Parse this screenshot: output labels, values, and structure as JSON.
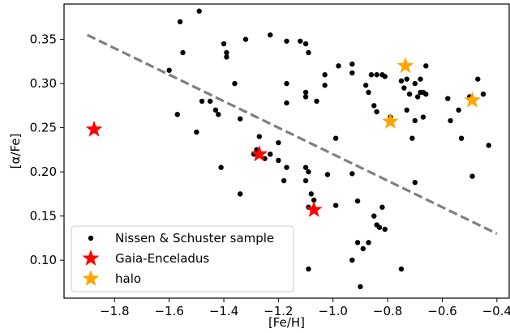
{
  "chart_data": {
    "type": "scatter",
    "xlabel": "[Fe/H]",
    "ylabel": "[α/Fe]",
    "xlim": [
      -1.985,
      -0.355
    ],
    "ylim": [
      0.057,
      0.39
    ],
    "xticks": [
      -1.8,
      -1.6,
      -1.4,
      -1.2,
      -1.0,
      -0.8,
      -0.6,
      -0.4
    ],
    "xtick_labels": [
      "−1.8",
      "−1.6",
      "−1.4",
      "−1.2",
      "−1.0",
      "−0.8",
      "−0.6",
      "−0.4"
    ],
    "yticks": [
      0.1,
      0.15,
      0.2,
      0.25,
      0.3,
      0.35
    ],
    "ytick_labels": [
      "0.10",
      "0.15",
      "0.20",
      "0.25",
      "0.30",
      "0.35"
    ],
    "grid": false,
    "legend_position": "lower-left",
    "dividing_line": {
      "x": [
        -1.9,
        -0.4
      ],
      "y": [
        0.355,
        0.13
      ],
      "color": "#808080",
      "style": "dashed"
    },
    "series": [
      {
        "name": "Nissen & Schuster sample",
        "marker": "dot",
        "color": "#000000",
        "points": [
          [
            -1.6,
            0.315
          ],
          [
            -1.56,
            0.37
          ],
          [
            -1.55,
            0.335
          ],
          [
            -1.49,
            0.382
          ],
          [
            -1.5,
            0.245
          ],
          [
            -1.57,
            0.265
          ],
          [
            -1.48,
            0.28
          ],
          [
            -1.45,
            0.28
          ],
          [
            -1.43,
            0.27
          ],
          [
            -1.42,
            0.265
          ],
          [
            -1.4,
            0.345
          ],
          [
            -1.39,
            0.33
          ],
          [
            -1.39,
            0.335
          ],
          [
            -1.36,
            0.3
          ],
          [
            -1.34,
            0.26
          ],
          [
            -1.32,
            0.35
          ],
          [
            -1.23,
            0.355
          ],
          [
            -1.41,
            0.205
          ],
          [
            -1.34,
            0.175
          ],
          [
            -1.29,
            0.22
          ],
          [
            -1.28,
            0.225
          ],
          [
            -1.27,
            0.24
          ],
          [
            -1.25,
            0.215
          ],
          [
            -1.23,
            0.22
          ],
          [
            -1.2,
            0.233
          ],
          [
            -1.2,
            0.213
          ],
          [
            -1.17,
            0.3
          ],
          [
            -1.17,
            0.278
          ],
          [
            -1.17,
            0.348
          ],
          [
            -1.12,
            0.348
          ],
          [
            -1.1,
            0.345
          ],
          [
            -1.09,
            0.335
          ],
          [
            -1.1,
            0.29
          ],
          [
            -1.1,
            0.285
          ],
          [
            -1.06,
            0.28
          ],
          [
            -1.03,
            0.298
          ],
          [
            -1.03,
            0.31
          ],
          [
            -0.98,
            0.32
          ],
          [
            -1.18,
            0.19
          ],
          [
            -1.17,
            0.205
          ],
          [
            -1.1,
            0.205
          ],
          [
            -1.09,
            0.2
          ],
          [
            -1.1,
            0.19
          ],
          [
            -1.09,
            0.16
          ],
          [
            -1.07,
            0.168
          ],
          [
            -1.08,
            0.175
          ],
          [
            -1.02,
            0.197
          ],
          [
            -0.99,
            0.238
          ],
          [
            -0.99,
            0.162
          ],
          [
            -0.93,
            0.198
          ],
          [
            -0.91,
            0.167
          ],
          [
            -1.09,
            0.09
          ],
          [
            -0.93,
            0.1
          ],
          [
            -0.91,
            0.12
          ],
          [
            -0.89,
            0.113
          ],
          [
            -0.9,
            0.07
          ],
          [
            -0.87,
            0.12
          ],
          [
            -0.85,
            0.15
          ],
          [
            -0.84,
            0.14
          ],
          [
            -0.83,
            0.137
          ],
          [
            -0.82,
            0.16
          ],
          [
            -0.81,
            0.135
          ],
          [
            -0.75,
            0.09
          ],
          [
            -0.93,
            0.322
          ],
          [
            -0.93,
            0.312
          ],
          [
            -0.88,
            0.298
          ],
          [
            -0.87,
            0.29
          ],
          [
            -0.86,
            0.31
          ],
          [
            -0.84,
            0.31
          ],
          [
            -0.82,
            0.31
          ],
          [
            -0.81,
            0.308
          ],
          [
            -0.85,
            0.275
          ],
          [
            -0.84,
            0.268
          ],
          [
            -0.79,
            0.262
          ],
          [
            -0.75,
            0.303
          ],
          [
            -0.74,
            0.295
          ],
          [
            -0.73,
            0.27
          ],
          [
            -0.73,
            0.305
          ],
          [
            -0.72,
            0.288
          ],
          [
            -0.7,
            0.3
          ],
          [
            -0.69,
            0.285
          ],
          [
            -0.68,
            0.29
          ],
          [
            -0.67,
            0.29
          ],
          [
            -0.68,
            0.305
          ],
          [
            -0.66,
            0.32
          ],
          [
            -0.66,
            0.288
          ],
          [
            -0.67,
            0.262
          ],
          [
            -0.7,
            0.258
          ],
          [
            -0.71,
            0.238
          ],
          [
            -0.7,
            0.188
          ],
          [
            -0.58,
            0.283
          ],
          [
            -0.57,
            0.258
          ],
          [
            -0.54,
            0.27
          ],
          [
            -0.53,
            0.238
          ],
          [
            -0.5,
            0.285
          ],
          [
            -0.49,
            0.195
          ],
          [
            -0.47,
            0.305
          ],
          [
            -0.45,
            0.288
          ],
          [
            -0.43,
            0.23
          ]
        ]
      },
      {
        "name": "Gaia-Enceladus",
        "marker": "star",
        "color": "#ff0000",
        "points": [
          [
            -1.875,
            0.248
          ],
          [
            -1.27,
            0.22
          ],
          [
            -1.07,
            0.157
          ]
        ]
      },
      {
        "name": "halo",
        "marker": "star",
        "color": "#ffa500",
        "points": [
          [
            -0.735,
            0.32
          ],
          [
            -0.79,
            0.257
          ],
          [
            -0.49,
            0.281
          ]
        ]
      }
    ]
  }
}
